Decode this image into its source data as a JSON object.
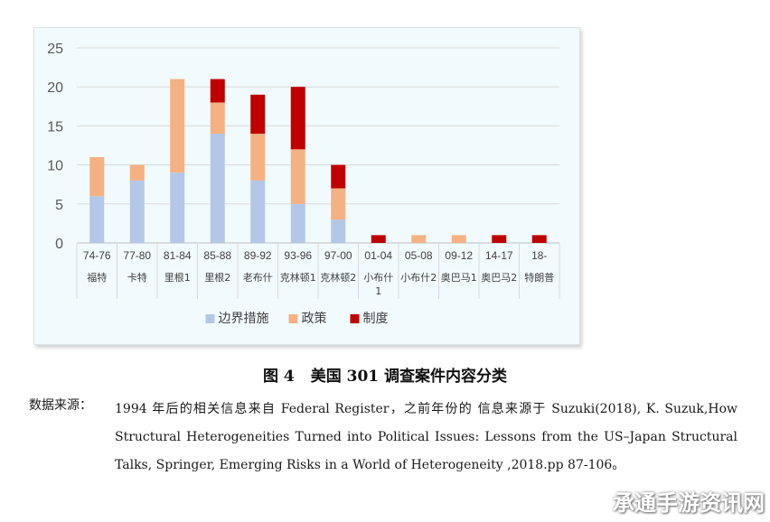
{
  "chart_data": {
    "type": "bar",
    "stacked": true,
    "categories": [
      {
        "period": "74-76",
        "president": "福特"
      },
      {
        "period": "77-80",
        "president": "卡特"
      },
      {
        "period": "81-84",
        "president": "里根1"
      },
      {
        "period": "85-88",
        "president": "里根2"
      },
      {
        "period": "89-92",
        "president": "老布什"
      },
      {
        "period": "93-96",
        "president": "克林顿1"
      },
      {
        "period": "97-00",
        "president": "克林顿2"
      },
      {
        "period": "01-04",
        "president": "小布什1"
      },
      {
        "period": "05-08",
        "president": "小布什2"
      },
      {
        "period": "09-12",
        "president": "奥巴马1"
      },
      {
        "period": "14-17",
        "president": "奥巴马2"
      },
      {
        "period": "18-",
        "president": "特朗普"
      }
    ],
    "series": [
      {
        "name": "边界措施",
        "color": "#b4c7e7",
        "values": [
          6,
          8,
          9,
          14,
          8,
          5,
          3,
          0,
          0,
          0,
          0,
          0
        ]
      },
      {
        "name": "政策",
        "color": "#f4b183",
        "values": [
          5,
          2,
          12,
          4,
          6,
          7,
          4,
          0,
          1,
          1,
          0,
          0
        ]
      },
      {
        "name": "制度",
        "color": "#c00000",
        "values": [
          0,
          0,
          0,
          3,
          5,
          8,
          3,
          1,
          0,
          0,
          1,
          1
        ]
      }
    ],
    "ylim": [
      0,
      25
    ],
    "yticks": [
      0,
      5,
      10,
      15,
      20,
      25
    ],
    "grid": true,
    "legend_position": "bottom"
  },
  "caption": {
    "label": "图 4",
    "title": "美国 301 调查案件内容分类"
  },
  "source": {
    "label": "数据来源：",
    "text": "1994 年后的相关信息来自 Federal Register，之前年份的 信息来源于 Suzuki(2018), K. Suzuk,How Structural Heterogeneities Turned into Political Issues: Lessons from the US–Japan Structural Talks, Springer, Emerging Risks in a World of Heterogeneity ,2018.pp 87-106。"
  },
  "watermark": "承通手游资讯网"
}
